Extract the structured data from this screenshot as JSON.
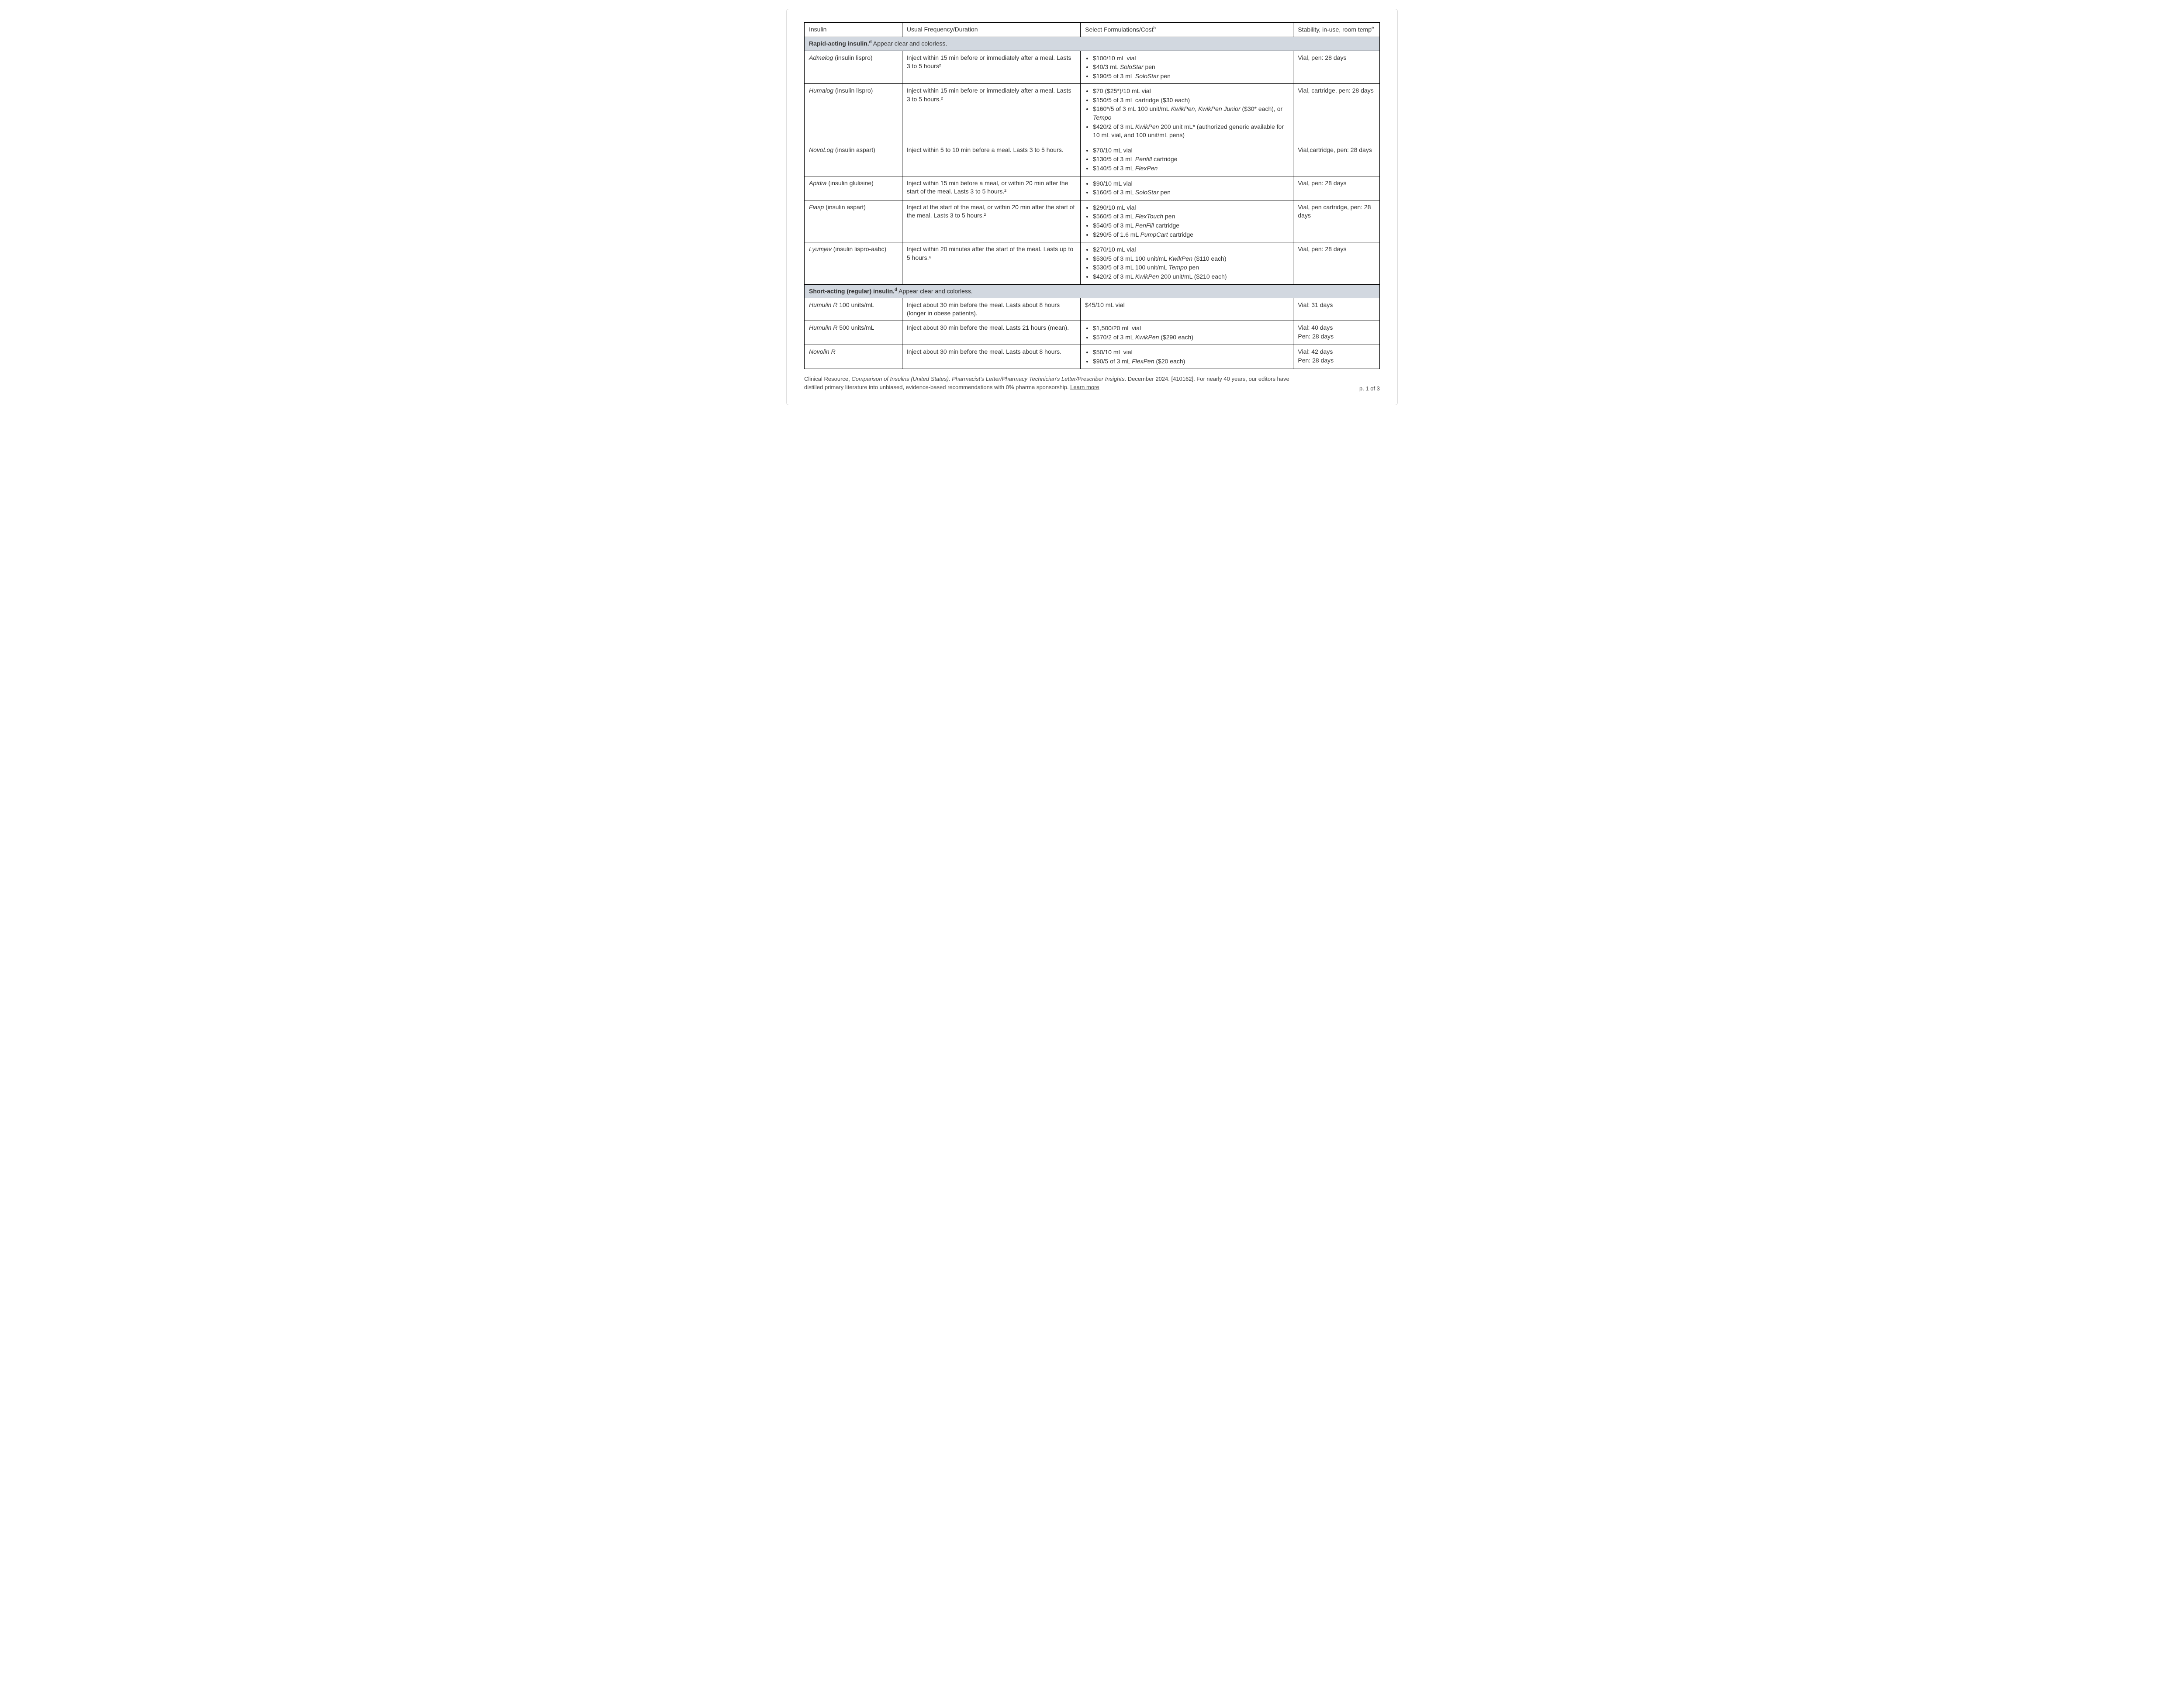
{
  "table": {
    "headers": {
      "c1": "Insulin",
      "c2": "Usual Frequency/Duration",
      "c3_pre": "Select Formulations/Cost",
      "c3_sup": "b",
      "c4_pre": "Stability, in-use, room temp",
      "c4_sup": "e"
    },
    "section1": {
      "title_bold": "Rapid-acting insulin.",
      "title_sup": "d",
      "title_rest": " Appear clear and colorless."
    },
    "rows1": [
      {
        "name_brand": "Admelog",
        "name_generic": " (insulin lispro)",
        "freq": "Inject within 15 min before or immediately after a meal. Lasts 3 to 5 hours²",
        "forms": [
          {
            "pre": "$100/10 mL vial"
          },
          {
            "pre": "$40/3 mL ",
            "it": "SoloStar",
            "post": " pen"
          },
          {
            "pre": "$190/5 of 3 mL ",
            "it": "SoloStar",
            "post": " pen"
          }
        ],
        "stability": "Vial, pen: 28 days"
      },
      {
        "name_brand": "Humalog",
        "name_generic": " (insulin lispro)",
        "freq": "Inject within 15 min before or immediately after a meal. Lasts 3 to 5 hours.²",
        "forms": [
          {
            "pre": "$70 ($25*)/10 mL vial"
          },
          {
            "pre": "$150/5 of 3 mL cartridge ($30 each)"
          },
          {
            "pre": "$160*/5 of 3 mL 100 unit/mL ",
            "it": "KwikPen",
            "post": ", ",
            "it2": "KwikPen Junior",
            "post2": " ($30* each), or ",
            "it3": "Tempo"
          },
          {
            "pre": "$420/2 of 3 mL ",
            "it": "KwikPen",
            "post": " 200 unit mL* (authorized generic available for 10 mL vial, and 100 unit/mL pens)"
          }
        ],
        "stability": "Vial, cartridge, pen: 28 days"
      },
      {
        "name_brand": "NovoLog",
        "name_generic": " (insulin aspart)",
        "freq": "Inject within 5 to 10 min before a meal. Lasts 3 to 5 hours.",
        "forms": [
          {
            "pre": "$70/10 mL vial"
          },
          {
            "pre": "$130/5 of 3 mL ",
            "it": "Penfill",
            "post": " cartridge"
          },
          {
            "pre": "$140/5 of 3 mL ",
            "it": "FlexPen"
          }
        ],
        "stability": "Vial,cartridge, pen: 28 days"
      },
      {
        "name_brand": "Apidra",
        "name_generic": " (insulin glulisine)",
        "freq": "Inject within 15 min before a meal, or within 20 min after the start of the meal. Lasts 3 to 5 hours.²",
        "forms": [
          {
            "pre": "$90/10 mL vial"
          },
          {
            "pre": "$160/5 of 3 mL ",
            "it": "SoloStar",
            "post": " pen"
          }
        ],
        "stability": "Vial, pen: 28 days"
      },
      {
        "name_brand": "Fiasp",
        "name_generic": " (insulin aspart)",
        "freq": "Inject at the start of the meal, or within 20 min after the start of the meal. Lasts 3 to 5 hours.²",
        "forms": [
          {
            "pre": "$290/10 mL vial"
          },
          {
            "pre": "$560/5 of 3 mL ",
            "it": "FlexTouch",
            "post": " pen"
          },
          {
            "pre": "$540/5 of 3 mL ",
            "it": "PenFill",
            "post": " cartridge"
          },
          {
            "pre": "$290/5 of 1.6 mL ",
            "it": "PumpCart",
            "post": " cartridge"
          }
        ],
        "stability": "Vial, pen cartridge, pen: 28 days"
      },
      {
        "name_brand": "Lyumjev",
        "name_generic": " (insulin lispro-aabc)",
        "freq": "Inject within 20 minutes after the start of the meal. Lasts up to 5 hours.⁶",
        "forms": [
          {
            "pre": "$270/10 mL vial"
          },
          {
            "pre": "$530/5 of 3 mL 100 unit/mL ",
            "it": "KwikPen",
            "post": " ($110 each)"
          },
          {
            "pre": "$530/5 of 3 mL 100 unit/mL ",
            "it": "Tempo",
            "post": " pen"
          },
          {
            "pre": "$420/2 of 3 mL ",
            "it": "KwikPen",
            "post": " 200 unit/mL ($210 each)"
          }
        ],
        "stability": "Vial, pen: 28 days"
      }
    ],
    "section2": {
      "title_bold": "Short-acting (regular) insulin.",
      "title_sup": "d",
      "title_rest": " Appear clear and colorless."
    },
    "rows2": [
      {
        "name_brand": "Humulin R",
        "name_generic": " 100 units/mL",
        "freq": "Inject about 30 min before the meal. Lasts about 8 hours (longer in obese patients).",
        "forms_plain": "$45/10 mL vial",
        "stability": "Vial: 31 days"
      },
      {
        "name_brand": "Humulin R",
        "name_generic": " 500 units/mL",
        "freq": "Inject about 30 min before the meal. Lasts 21 hours (mean).",
        "forms": [
          {
            "pre": "$1,500/20 mL vial"
          },
          {
            "pre": "$570/2 of 3 mL ",
            "it": "KwikPen",
            "post": " ($290 each)"
          }
        ],
        "stability_lines": [
          "Vial: 40 days",
          "Pen: 28 days"
        ]
      },
      {
        "name_brand": "Novolin R",
        "name_generic": "",
        "freq": "Inject about 30 min before the meal. Lasts about 8 hours.",
        "forms": [
          {
            "pre": "$50/10 mL vial"
          },
          {
            "pre": "$90/5 of 3 mL ",
            "it": "FlexPen",
            "post": " ($20 each)"
          }
        ],
        "stability_lines": [
          "Vial: 42 days",
          "Pen: 28 days"
        ]
      }
    ]
  },
  "footer": {
    "pre": "Clinical Resource, ",
    "title_italic": "Comparison of Insulins (United States)",
    "mid": ". ",
    "source_italic": "Pharmacist's Letter/Pharmacy Technician's Letter/Prescriber Insights",
    "post": ". December 2024. [410162]. For nearly 40 years, our editors have distilled primary literature into unbiased, evidence-based recommendations with 0% pharma sponsorship. ",
    "link": "Learn more",
    "page": "p. 1 of 3"
  },
  "colors": {
    "section_bg": "#d2d8e0",
    "border": "#000000",
    "text": "#333333"
  }
}
